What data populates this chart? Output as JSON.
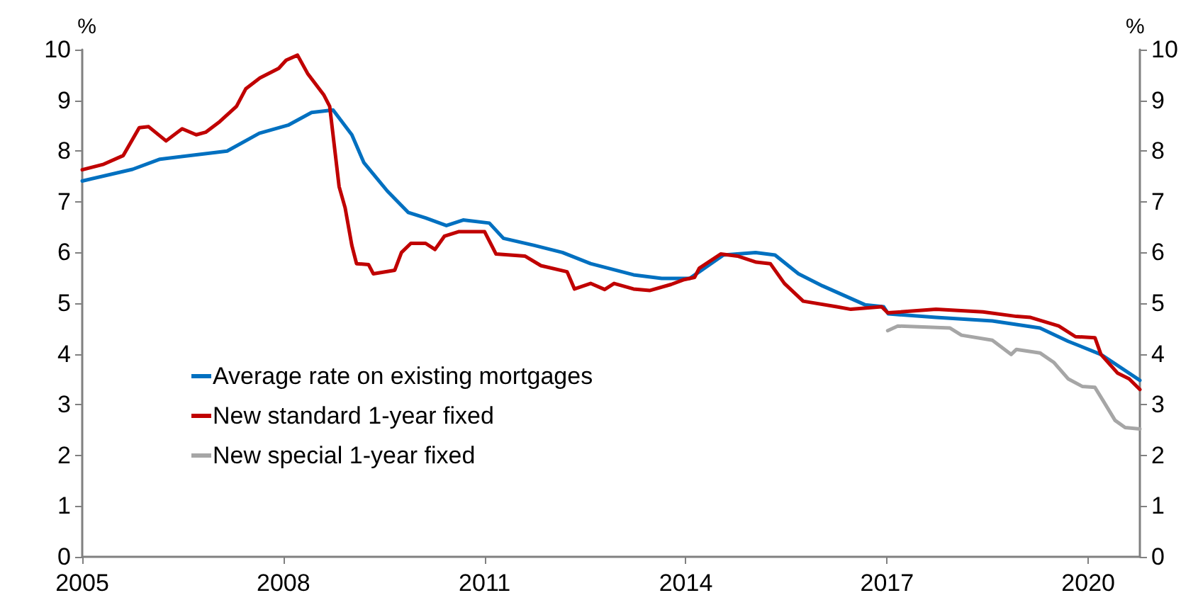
{
  "chart_data": {
    "type": "line",
    "ylabel": "%",
    "y2label": "%",
    "xlim": [
      2005,
      2020.77
    ],
    "xticks": [
      2005,
      2008,
      2011,
      2014,
      2017,
      2020
    ],
    "ylim": [
      0,
      10
    ],
    "yticks": [
      0,
      1,
      2,
      3,
      4,
      5,
      6,
      7,
      8,
      9,
      10
    ],
    "y2lim": [
      0,
      10
    ],
    "y2ticks": [
      0,
      1,
      2,
      3,
      4,
      5,
      6,
      7,
      8,
      9,
      10
    ],
    "grid": false,
    "legend": "bottom left",
    "marker": "none",
    "line_style": "solid",
    "series": [
      {
        "name": "Average rate on existing mortgages",
        "color": "#0070c0",
        "x": [
          2005,
          2005.75,
          2006.16,
          2007.16,
          2007.64,
          2008.07,
          2008.42,
          2008.74,
          2009.02,
          2009.2,
          2009.55,
          2009.86,
          2010.12,
          2010.43,
          2010.68,
          2011.07,
          2011.28,
          2011.74,
          2012.16,
          2012.58,
          2013.22,
          2013.64,
          2014.06,
          2014.56,
          2015.04,
          2015.33,
          2015.68,
          2016.04,
          2016.67,
          2016.95,
          2017.02,
          2017.73,
          2018.57,
          2019.28,
          2019.7,
          2020.19,
          2020.77
        ],
        "values": [
          7.41,
          7.64,
          7.84,
          8.0,
          8.35,
          8.51,
          8.76,
          8.81,
          8.32,
          7.77,
          7.21,
          6.79,
          6.68,
          6.53,
          6.64,
          6.58,
          6.28,
          6.14,
          6.0,
          5.78,
          5.56,
          5.49,
          5.49,
          5.95,
          6.0,
          5.95,
          5.58,
          5.34,
          4.97,
          4.93,
          4.79,
          4.72,
          4.65,
          4.51,
          4.25,
          3.99,
          3.48
        ]
      },
      {
        "name": "New standard 1-year fixed",
        "color": "#c00000",
        "x": [
          2005,
          2005.32,
          2005.61,
          2005.85,
          2005.99,
          2006.25,
          2006.49,
          2006.7,
          2006.84,
          2007.05,
          2007.3,
          2007.44,
          2007.65,
          2007.93,
          2008.04,
          2008.21,
          2008.36,
          2008.6,
          2008.69,
          2008.83,
          2008.92,
          2009.02,
          2009.09,
          2009.27,
          2009.34,
          2009.66,
          2009.76,
          2009.9,
          2010.12,
          2010.26,
          2010.4,
          2010.61,
          2011.0,
          2011.17,
          2011.6,
          2011.84,
          2012.23,
          2012.34,
          2012.58,
          2012.79,
          2012.93,
          2013.22,
          2013.46,
          2013.78,
          2013.96,
          2014.13,
          2014.2,
          2014.52,
          2014.77,
          2015.05,
          2015.26,
          2015.47,
          2015.75,
          2016.25,
          2016.46,
          2016.92,
          2017.01,
          2017.73,
          2018.43,
          2018.93,
          2019.14,
          2019.56,
          2019.81,
          2020.1,
          2020.19,
          2020.44,
          2020.61,
          2020.77
        ],
        "values": [
          7.63,
          7.74,
          7.91,
          8.46,
          8.48,
          8.2,
          8.44,
          8.32,
          8.37,
          8.58,
          8.88,
          9.23,
          9.44,
          9.63,
          9.79,
          9.89,
          9.53,
          9.11,
          8.88,
          7.3,
          6.88,
          6.14,
          5.78,
          5.76,
          5.58,
          5.65,
          6.0,
          6.18,
          6.18,
          6.06,
          6.32,
          6.41,
          6.41,
          5.97,
          5.93,
          5.74,
          5.62,
          5.28,
          5.39,
          5.27,
          5.39,
          5.28,
          5.25,
          5.37,
          5.46,
          5.51,
          5.69,
          5.97,
          5.93,
          5.81,
          5.78,
          5.39,
          5.04,
          4.93,
          4.88,
          4.93,
          4.81,
          4.88,
          4.83,
          4.74,
          4.72,
          4.55,
          4.34,
          4.32,
          3.99,
          3.62,
          3.51,
          3.3
        ]
      },
      {
        "name": "New special 1-year fixed",
        "color": "#a6a6a6",
        "x": [
          2017.01,
          2017.16,
          2017.94,
          2018.11,
          2018.57,
          2018.85,
          2018.93,
          2019.28,
          2019.49,
          2019.7,
          2019.91,
          2020.1,
          2020.23,
          2020.4,
          2020.55,
          2020.77
        ],
        "values": [
          4.46,
          4.55,
          4.51,
          4.37,
          4.27,
          3.99,
          4.09,
          4.02,
          3.83,
          3.51,
          3.36,
          3.34,
          3.06,
          2.69,
          2.55,
          2.52
        ]
      }
    ]
  }
}
